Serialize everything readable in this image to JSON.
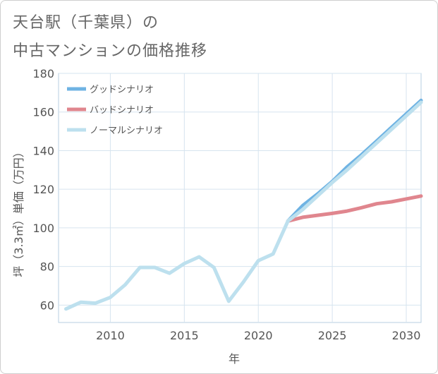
{
  "title": {
    "line1": "天台駅（千葉県）の",
    "line2": "中古マンションの価格推移"
  },
  "chart_data": {
    "type": "line",
    "xlabel": "年",
    "ylabel": "坪（3.3㎡）単価（万円）",
    "xlim": [
      2006.5,
      2031
    ],
    "ylim": [
      51,
      180
    ],
    "xticks": [
      2010,
      2015,
      2020,
      2025,
      2030
    ],
    "yticks": [
      60,
      80,
      100,
      120,
      140,
      160,
      180
    ],
    "grid": true,
    "legend_position": "top-left",
    "series": [
      {
        "name": "グッドシナリオ",
        "color": "#6fb3e3",
        "x": [
          2022,
          2023,
          2024,
          2025,
          2026,
          2027,
          2028,
          2029,
          2030,
          2031
        ],
        "values": [
          103.5,
          111.5,
          117.5,
          124,
          131.5,
          138,
          145,
          152,
          159,
          166
        ]
      },
      {
        "name": "バッドシナリオ",
        "color": "#e0868e",
        "x": [
          2022,
          2023,
          2024,
          2025,
          2026,
          2027,
          2028,
          2029,
          2030,
          2031
        ],
        "values": [
          103.5,
          105.5,
          106.5,
          107.5,
          108.7,
          110.5,
          112.5,
          113.5,
          115,
          116.5
        ]
      },
      {
        "name": "ノーマルシナリオ",
        "color": "#bde0ee",
        "x": [
          2007,
          2008,
          2009,
          2010,
          2011,
          2012,
          2013,
          2014,
          2015,
          2016,
          2017,
          2018,
          2019,
          2020,
          2021,
          2022,
          2023,
          2024,
          2025,
          2026,
          2027,
          2028,
          2029,
          2030,
          2031
        ],
        "values": [
          58,
          61.5,
          61,
          64,
          70.5,
          79.5,
          79.5,
          76.5,
          81.5,
          85,
          79.5,
          62,
          72,
          83,
          86.5,
          103.5,
          109.5,
          116.5,
          123.5,
          130,
          137,
          144,
          151,
          158,
          165
        ]
      }
    ]
  }
}
